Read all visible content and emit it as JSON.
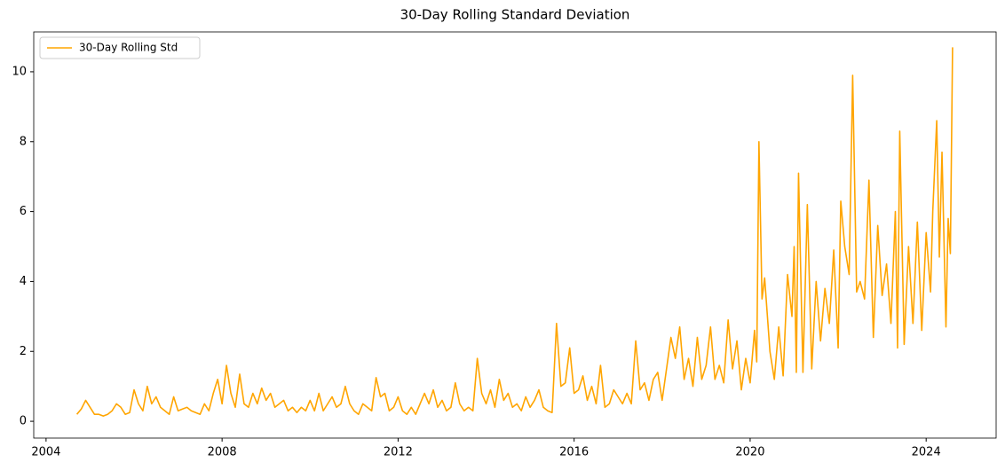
{
  "chart_data": {
    "type": "line",
    "title": "30-Day Rolling Standard Deviation",
    "x": [
      2004.7,
      2004.8,
      2004.9,
      2005.0,
      2005.1,
      2005.2,
      2005.3,
      2005.4,
      2005.5,
      2005.6,
      2005.7,
      2005.8,
      2005.9,
      2006.0,
      2006.1,
      2006.2,
      2006.3,
      2006.4,
      2006.5,
      2006.6,
      2006.7,
      2006.8,
      2006.9,
      2007.0,
      2007.1,
      2007.2,
      2007.3,
      2007.4,
      2007.5,
      2007.6,
      2007.7,
      2007.8,
      2007.9,
      2008.0,
      2008.1,
      2008.2,
      2008.3,
      2008.4,
      2008.5,
      2008.6,
      2008.7,
      2008.8,
      2008.9,
      2009.0,
      2009.1,
      2009.2,
      2009.3,
      2009.4,
      2009.5,
      2009.6,
      2009.7,
      2009.8,
      2009.9,
      2010.0,
      2010.1,
      2010.2,
      2010.3,
      2010.4,
      2010.5,
      2010.6,
      2010.7,
      2010.8,
      2010.9,
      2011.0,
      2011.1,
      2011.2,
      2011.3,
      2011.4,
      2011.5,
      2011.6,
      2011.7,
      2011.8,
      2011.9,
      2012.0,
      2012.1,
      2012.2,
      2012.3,
      2012.4,
      2012.5,
      2012.6,
      2012.7,
      2012.8,
      2012.9,
      2013.0,
      2013.1,
      2013.2,
      2013.3,
      2013.4,
      2013.5,
      2013.6,
      2013.7,
      2013.8,
      2013.9,
      2014.0,
      2014.1,
      2014.2,
      2014.3,
      2014.4,
      2014.5,
      2014.6,
      2014.7,
      2014.8,
      2014.9,
      2015.0,
      2015.1,
      2015.2,
      2015.3,
      2015.4,
      2015.5,
      2015.6,
      2015.7,
      2015.8,
      2015.9,
      2016.0,
      2016.1,
      2016.2,
      2016.3,
      2016.4,
      2016.5,
      2016.6,
      2016.7,
      2016.8,
      2016.9,
      2017.0,
      2017.1,
      2017.2,
      2017.3,
      2017.4,
      2017.5,
      2017.6,
      2017.7,
      2017.8,
      2017.9,
      2018.0,
      2018.1,
      2018.2,
      2018.3,
      2018.4,
      2018.5,
      2018.6,
      2018.7,
      2018.8,
      2018.9,
      2019.0,
      2019.1,
      2019.2,
      2019.3,
      2019.4,
      2019.5,
      2019.6,
      2019.7,
      2019.8,
      2019.9,
      2020.0,
      2020.1,
      2020.15,
      2020.2,
      2020.27,
      2020.33,
      2020.45,
      2020.55,
      2020.65,
      2020.75,
      2020.85,
      2020.95,
      2021.0,
      2021.05,
      2021.1,
      2021.2,
      2021.3,
      2021.4,
      2021.5,
      2021.6,
      2021.7,
      2021.8,
      2021.9,
      2022.0,
      2022.06,
      2022.15,
      2022.25,
      2022.33,
      2022.42,
      2022.5,
      2022.6,
      2022.7,
      2022.8,
      2022.9,
      2023.0,
      2023.1,
      2023.2,
      2023.3,
      2023.35,
      2023.4,
      2023.5,
      2023.6,
      2023.7,
      2023.8,
      2023.9,
      2024.0,
      2024.1,
      2024.15,
      2024.24,
      2024.3,
      2024.36,
      2024.45,
      2024.5,
      2024.55,
      2024.6
    ],
    "series": [
      {
        "name": "30-Day Rolling Std",
        "color": "#ffa500",
        "values": [
          0.2,
          0.35,
          0.6,
          0.4,
          0.2,
          0.2,
          0.15,
          0.2,
          0.3,
          0.5,
          0.4,
          0.2,
          0.25,
          0.9,
          0.5,
          0.3,
          1.0,
          0.5,
          0.7,
          0.4,
          0.3,
          0.2,
          0.7,
          0.3,
          0.35,
          0.4,
          0.3,
          0.25,
          0.2,
          0.5,
          0.3,
          0.8,
          1.2,
          0.5,
          1.6,
          0.8,
          0.4,
          1.35,
          0.5,
          0.4,
          0.8,
          0.5,
          0.95,
          0.6,
          0.8,
          0.4,
          0.5,
          0.6,
          0.3,
          0.4,
          0.25,
          0.4,
          0.3,
          0.6,
          0.3,
          0.8,
          0.3,
          0.5,
          0.7,
          0.4,
          0.5,
          1.0,
          0.5,
          0.3,
          0.2,
          0.5,
          0.4,
          0.3,
          1.25,
          0.7,
          0.8,
          0.3,
          0.4,
          0.7,
          0.3,
          0.2,
          0.4,
          0.2,
          0.5,
          0.8,
          0.5,
          0.9,
          0.4,
          0.6,
          0.3,
          0.4,
          1.1,
          0.5,
          0.3,
          0.4,
          0.3,
          1.8,
          0.8,
          0.5,
          0.9,
          0.4,
          1.2,
          0.6,
          0.8,
          0.4,
          0.5,
          0.3,
          0.7,
          0.4,
          0.6,
          0.9,
          0.4,
          0.3,
          0.25,
          2.8,
          1.0,
          1.1,
          2.1,
          0.8,
          0.9,
          1.3,
          0.6,
          1.0,
          0.5,
          1.6,
          0.4,
          0.5,
          0.9,
          0.7,
          0.5,
          0.8,
          0.5,
          2.3,
          0.9,
          1.1,
          0.6,
          1.2,
          1.4,
          0.6,
          1.5,
          2.4,
          1.8,
          2.7,
          1.2,
          1.8,
          1.0,
          2.4,
          1.2,
          1.6,
          2.7,
          1.2,
          1.6,
          1.1,
          2.9,
          1.5,
          2.3,
          0.9,
          1.8,
          1.1,
          2.6,
          1.7,
          8.0,
          3.5,
          4.1,
          2.0,
          1.2,
          2.7,
          1.3,
          4.2,
          3.0,
          5.0,
          1.4,
          7.1,
          1.4,
          6.2,
          1.5,
          4.0,
          2.3,
          3.8,
          2.8,
          4.9,
          2.1,
          6.3,
          5.0,
          4.2,
          9.9,
          3.7,
          4.0,
          3.5,
          6.9,
          2.4,
          5.6,
          3.6,
          4.5,
          2.8,
          6.0,
          2.1,
          8.3,
          2.2,
          5.0,
          2.8,
          5.7,
          2.6,
          5.4,
          3.7,
          6.0,
          8.6,
          4.7,
          7.7,
          2.7,
          5.8,
          4.8,
          10.7
        ]
      }
    ],
    "xlim": [
      2003.72,
      2025.59
    ],
    "xticks": [
      2004,
      2008,
      2012,
      2016,
      2020,
      2024
    ],
    "ylim": [
      -0.48,
      11.14
    ],
    "yticks": [
      0,
      2,
      4,
      6,
      8,
      10
    ],
    "legend": "upper left"
  }
}
